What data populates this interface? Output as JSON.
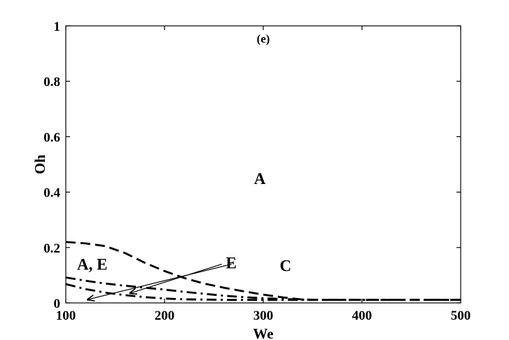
{
  "chart_data": {
    "type": "line",
    "title": "",
    "panel_label": "(e)",
    "xlabel": "We",
    "ylabel": "Oh",
    "xlim": [
      100,
      500
    ],
    "ylim": [
      0,
      1
    ],
    "xticks": [
      100,
      200,
      300,
      400,
      500
    ],
    "yticks": [
      0,
      0.2,
      0.4,
      0.6,
      0.8,
      1
    ],
    "ytick_labels": [
      "0",
      "0.2",
      "0.4",
      "0.6",
      "0.8",
      "1"
    ],
    "grid": false,
    "legend": "none",
    "series": [
      {
        "style": "dashed",
        "x": [
          100,
          120,
          140,
          160,
          180,
          200,
          220,
          240,
          260,
          280,
          300,
          320,
          340,
          360,
          400,
          450,
          500
        ],
        "y": [
          0.22,
          0.215,
          0.205,
          0.18,
          0.145,
          0.115,
          0.09,
          0.07,
          0.055,
          0.042,
          0.03,
          0.02,
          0.012,
          0.011,
          0.011,
          0.011,
          0.011
        ]
      },
      {
        "style": "dash-dot",
        "x": [
          100,
          120,
          140,
          160,
          180,
          200,
          220,
          240,
          260,
          280,
          300,
          320,
          340,
          360,
          400,
          450,
          500
        ],
        "y": [
          0.092,
          0.08,
          0.07,
          0.062,
          0.055,
          0.048,
          0.04,
          0.033,
          0.026,
          0.021,
          0.017,
          0.014,
          0.012,
          0.011,
          0.011,
          0.011,
          0.011
        ]
      },
      {
        "style": "dash-dot",
        "x": [
          100,
          120,
          140,
          160,
          180,
          200,
          220,
          240,
          260,
          280,
          300,
          340,
          400,
          450,
          500
        ],
        "y": [
          0.068,
          0.05,
          0.037,
          0.028,
          0.021,
          0.016,
          0.013,
          0.012,
          0.011,
          0.011,
          0.011,
          0.011,
          0.011,
          0.011,
          0.011
        ]
      }
    ],
    "annotations": [
      {
        "text": "A",
        "x": 300,
        "y": 0.44
      },
      {
        "text": "A, E",
        "x": 100,
        "y": 0.13
      },
      {
        "text": "E",
        "x": 225,
        "y": 0.135
      },
      {
        "text": "C",
        "x": 280,
        "y": 0.125
      }
    ],
    "arrows": [
      {
        "from": [
          268,
          0.14
        ],
        "to": [
          122,
          0.012
        ]
      },
      {
        "from": [
          258,
          0.14
        ],
        "to": [
          165,
          0.035
        ]
      }
    ]
  }
}
